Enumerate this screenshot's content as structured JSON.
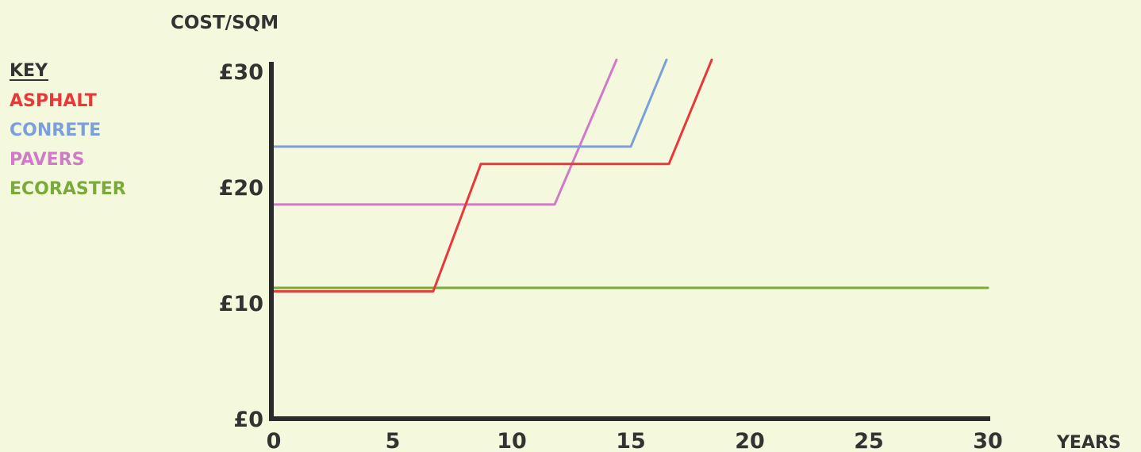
{
  "chart_data": {
    "type": "line",
    "ylabel": "COST/SQM",
    "xlabel": "YEARS",
    "xlim": [
      0,
      30
    ],
    "ylim": [
      0,
      30
    ],
    "x_ticks": [
      "0",
      "5",
      "10",
      "15",
      "20",
      "25",
      "30"
    ],
    "y_ticks": [
      "£0",
      "£10",
      "£20",
      "£30"
    ],
    "legend": {
      "title": "KEY",
      "placement": "left"
    },
    "series": [
      {
        "name": "ASPHALT",
        "color": "#e8383a",
        "x": [
          0,
          6.7,
          8.7,
          16.6,
          18.4
        ],
        "y": [
          11,
          11,
          22,
          22,
          31
        ]
      },
      {
        "name": "CONRETE",
        "color": "#7b9fdc",
        "x": [
          0,
          15.0,
          16.5
        ],
        "y": [
          23.5,
          23.5,
          31
        ]
      },
      {
        "name": "PAVERS",
        "color": "#d07ac8",
        "x": [
          0,
          11.8,
          14.4
        ],
        "y": [
          18.5,
          18.5,
          31
        ]
      },
      {
        "name": "ECORASTER",
        "color": "#7aaa3a",
        "x": [
          0,
          30
        ],
        "y": [
          11.3,
          11.3
        ]
      }
    ],
    "grid": false
  }
}
